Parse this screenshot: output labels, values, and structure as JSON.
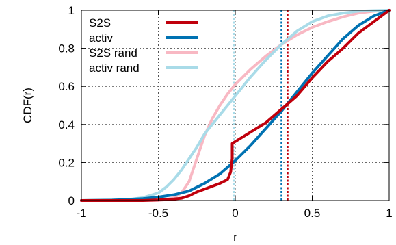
{
  "chart_data": {
    "type": "line",
    "xlabel": "r",
    "ylabel": "CDF(r)",
    "xlim": [
      -1,
      1
    ],
    "ylim": [
      0,
      1
    ],
    "xticks": [
      -1,
      -0.5,
      0,
      0.5,
      1
    ],
    "xtick_labels": [
      "-1",
      "-0.5",
      "0",
      "0.5",
      "1"
    ],
    "yticks": [
      0,
      0.2,
      0.4,
      0.6,
      0.8,
      1
    ],
    "ytick_labels": [
      "0",
      "0.2",
      "0.4",
      "0.6",
      "0.8",
      "1"
    ],
    "grid": true,
    "legend_position": "top-left",
    "series": [
      {
        "name": "S2S",
        "color": "#c0000c",
        "x": [
          -1.0,
          -0.6,
          -0.5,
          -0.4,
          -0.35,
          -0.3,
          -0.25,
          -0.2,
          -0.15,
          -0.1,
          -0.05,
          -0.03,
          -0.02,
          -0.02,
          0.0,
          0.1,
          0.2,
          0.3,
          0.35,
          0.4,
          0.5,
          0.6,
          0.7,
          0.8,
          0.9,
          0.95,
          1.0
        ],
        "y": [
          0.0,
          0.0,
          0.003,
          0.008,
          0.012,
          0.025,
          0.045,
          0.06,
          0.075,
          0.09,
          0.11,
          0.15,
          0.22,
          0.3,
          0.31,
          0.36,
          0.41,
          0.48,
          0.515,
          0.55,
          0.645,
          0.73,
          0.8,
          0.88,
          0.94,
          0.97,
          1.0
        ]
      },
      {
        "name": "activ",
        "color": "#0072b2",
        "x": [
          -1.0,
          -0.8,
          -0.6,
          -0.5,
          -0.4,
          -0.3,
          -0.2,
          -0.1,
          0.0,
          0.1,
          0.2,
          0.3,
          0.4,
          0.5,
          0.6,
          0.7,
          0.8,
          0.9,
          1.0
        ],
        "y": [
          0.0,
          0.002,
          0.01,
          0.018,
          0.03,
          0.05,
          0.09,
          0.14,
          0.21,
          0.29,
          0.38,
          0.47,
          0.57,
          0.67,
          0.76,
          0.85,
          0.92,
          0.97,
          1.0
        ]
      },
      {
        "name": "S2S rand",
        "color": "#f8b8c3",
        "x": [
          -1.0,
          -0.5,
          -0.45,
          -0.4,
          -0.35,
          -0.3,
          -0.25,
          -0.2,
          -0.15,
          -0.1,
          -0.05,
          0.0,
          0.1,
          0.2,
          0.3,
          0.4,
          0.5,
          0.6,
          0.7,
          0.8,
          0.9,
          1.0
        ],
        "y": [
          0.0,
          0.0,
          0.005,
          0.015,
          0.04,
          0.1,
          0.22,
          0.34,
          0.43,
          0.5,
          0.56,
          0.61,
          0.69,
          0.76,
          0.82,
          0.87,
          0.91,
          0.94,
          0.965,
          0.985,
          0.995,
          1.0
        ]
      },
      {
        "name": "activ rand",
        "color": "#a9dbe8",
        "x": [
          -1.0,
          -0.7,
          -0.6,
          -0.5,
          -0.45,
          -0.4,
          -0.35,
          -0.3,
          -0.25,
          -0.2,
          -0.15,
          -0.1,
          -0.05,
          0.0,
          0.1,
          0.2,
          0.3,
          0.4,
          0.5,
          0.6,
          0.7,
          0.8,
          0.9,
          1.0
        ],
        "y": [
          0.0,
          0.005,
          0.015,
          0.04,
          0.07,
          0.11,
          0.16,
          0.22,
          0.28,
          0.35,
          0.4,
          0.45,
          0.5,
          0.55,
          0.65,
          0.74,
          0.82,
          0.89,
          0.94,
          0.97,
          0.985,
          0.995,
          0.998,
          1.0
        ]
      }
    ],
    "vertical_lines": [
      {
        "x": -0.01,
        "color": "#f8b8c3"
      },
      {
        "x": -0.01,
        "color": "#a9dbe8"
      },
      {
        "x": 0.3,
        "color": "#0072b2"
      },
      {
        "x": 0.34,
        "color": "#c0000c"
      }
    ]
  }
}
